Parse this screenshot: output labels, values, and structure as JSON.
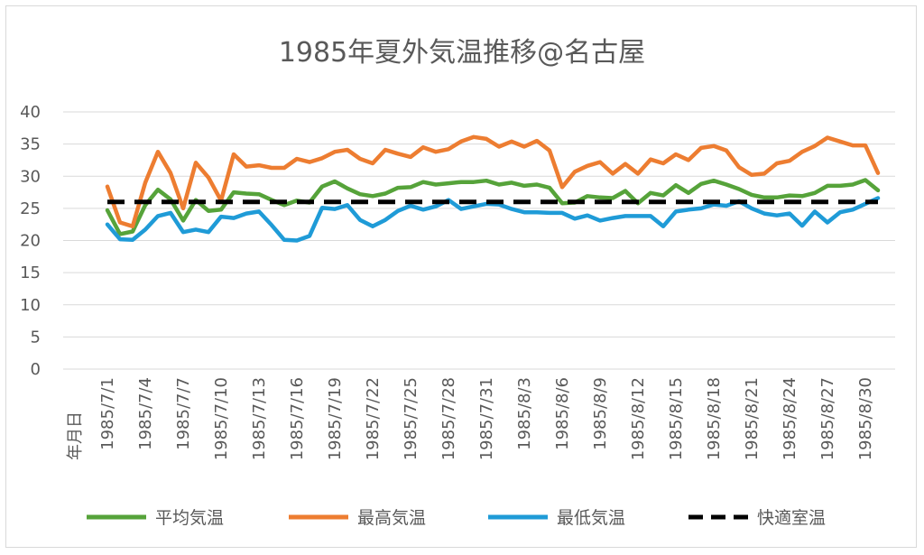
{
  "chart_data": {
    "type": "line",
    "title": "1985年夏外気温推移@名古屋",
    "xlabel": "年月日",
    "ylabel": "",
    "ylim": [
      0,
      40
    ],
    "yticks": [
      0,
      5,
      10,
      15,
      20,
      25,
      30,
      35,
      40
    ],
    "grid": true,
    "legend_position": "bottom",
    "x_tick_labels": [
      "1985/7/1",
      "1985/7/4",
      "1985/7/7",
      "1985/7/10",
      "1985/7/13",
      "1985/7/16",
      "1985/7/19",
      "1985/7/22",
      "1985/7/25",
      "1985/7/28",
      "1985/7/31",
      "1985/8/3",
      "1985/8/6",
      "1985/8/9",
      "1985/8/12",
      "1985/8/15",
      "1985/8/18",
      "1985/8/21",
      "1985/8/24",
      "1985/8/27",
      "1985/8/30"
    ],
    "x_start": "1985/7/1",
    "x_count": 62,
    "series": [
      {
        "name": "平均気温",
        "color": "#56a33a",
        "dash": false,
        "values": [
          24.7,
          21.0,
          21.4,
          25.5,
          27.9,
          26.4,
          23.1,
          26.3,
          24.6,
          24.8,
          27.5,
          27.3,
          27.2,
          26.3,
          25.5,
          26.2,
          25.9,
          28.4,
          29.2,
          28.1,
          27.2,
          26.9,
          27.3,
          28.2,
          28.3,
          29.1,
          28.7,
          28.9,
          29.1,
          29.1,
          29.3,
          28.7,
          29.0,
          28.5,
          28.7,
          28.2,
          25.8,
          25.9,
          26.9,
          26.7,
          26.6,
          27.7,
          25.8,
          27.4,
          27.0,
          28.6,
          27.4,
          28.8,
          29.3,
          28.7,
          28.0,
          27.1,
          26.7,
          26.7,
          27.0,
          26.9,
          27.4,
          28.5,
          28.5,
          28.7,
          29.4,
          27.8
        ]
      },
      {
        "name": "最高気温",
        "color": "#ed7d31",
        "dash": false,
        "values": [
          28.4,
          22.8,
          22.2,
          29.0,
          33.8,
          30.5,
          25.0,
          32.1,
          29.8,
          26.2,
          33.4,
          31.5,
          31.7,
          31.3,
          31.3,
          32.7,
          32.2,
          32.8,
          33.8,
          34.1,
          32.7,
          32.0,
          34.1,
          33.5,
          33.0,
          34.5,
          33.8,
          34.2,
          35.4,
          36.1,
          35.8,
          34.6,
          35.4,
          34.6,
          35.5,
          34.0,
          28.3,
          30.7,
          31.6,
          32.2,
          30.4,
          31.9,
          30.4,
          32.6,
          32.0,
          33.4,
          32.5,
          34.4,
          34.7,
          34.0,
          31.4,
          30.2,
          30.4,
          32.0,
          32.4,
          33.8,
          34.7,
          36.0,
          35.4,
          34.8,
          34.8,
          30.5
        ]
      },
      {
        "name": "最低気温",
        "color": "#1f9bd7",
        "dash": false,
        "values": [
          22.5,
          20.2,
          20.1,
          21.7,
          23.8,
          24.3,
          21.3,
          21.7,
          21.3,
          23.7,
          23.5,
          24.2,
          24.5,
          22.4,
          20.1,
          20.0,
          20.7,
          25.1,
          24.9,
          25.5,
          23.2,
          22.2,
          23.2,
          24.6,
          25.4,
          24.8,
          25.3,
          26.3,
          24.9,
          25.3,
          25.7,
          25.6,
          24.9,
          24.4,
          24.4,
          24.3,
          24.3,
          23.4,
          23.9,
          23.1,
          23.5,
          23.8,
          23.8,
          23.8,
          22.2,
          24.5,
          24.8,
          25.0,
          25.6,
          25.4,
          26.1,
          25.0,
          24.2,
          23.9,
          24.2,
          22.3,
          24.5,
          22.8,
          24.4,
          24.8,
          25.7,
          26.6
        ]
      },
      {
        "name": "快適室温",
        "color": "#000000",
        "dash": true,
        "values": [
          26,
          26,
          26,
          26,
          26,
          26,
          26,
          26,
          26,
          26,
          26,
          26,
          26,
          26,
          26,
          26,
          26,
          26,
          26,
          26,
          26,
          26,
          26,
          26,
          26,
          26,
          26,
          26,
          26,
          26,
          26,
          26,
          26,
          26,
          26,
          26,
          26,
          26,
          26,
          26,
          26,
          26,
          26,
          26,
          26,
          26,
          26,
          26,
          26,
          26,
          26,
          26,
          26,
          26,
          26,
          26,
          26,
          26,
          26,
          26,
          26,
          26
        ]
      }
    ]
  }
}
